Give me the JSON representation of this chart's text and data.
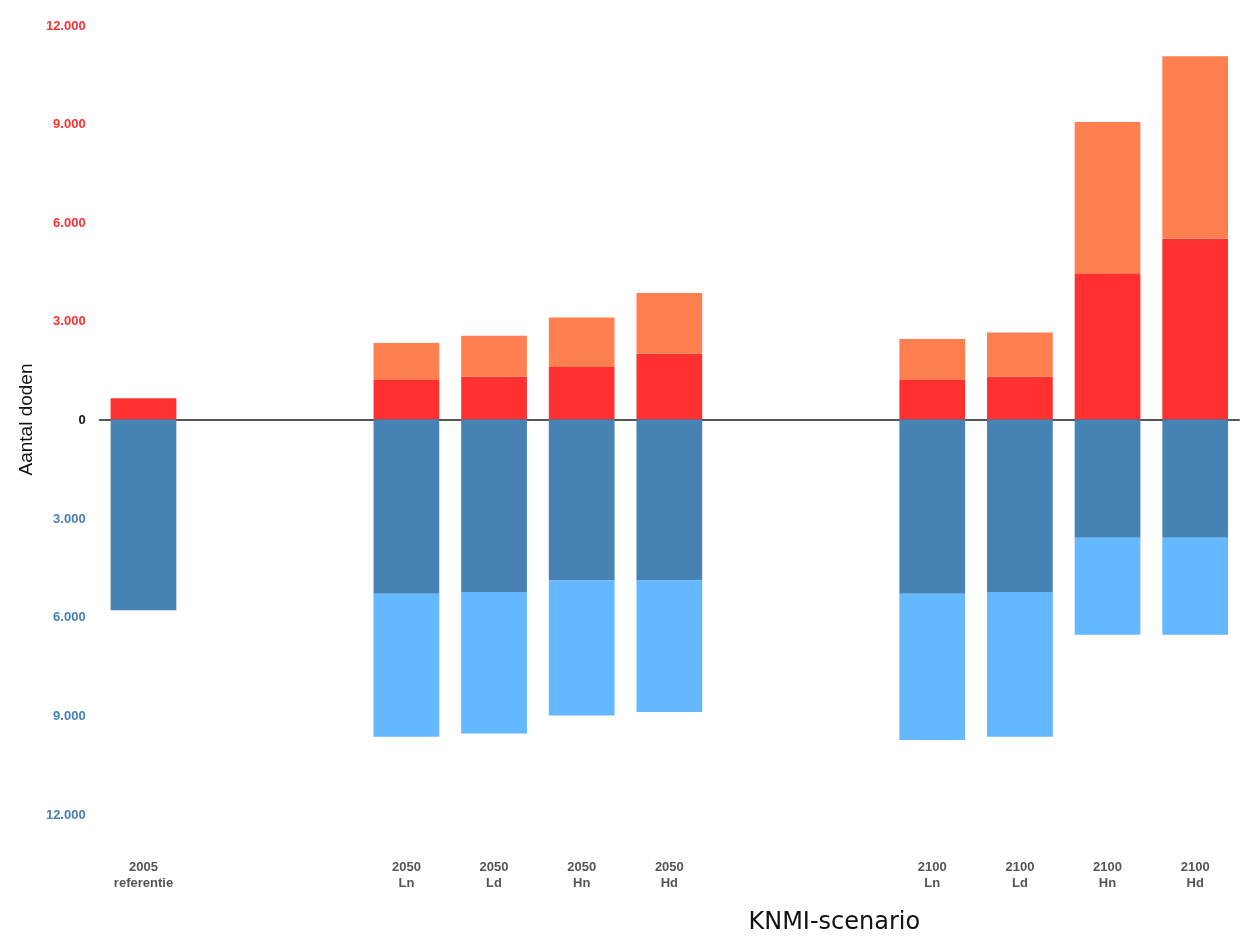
{
  "chart_data": {
    "type": "bar",
    "stacked": true,
    "xlabel": "KNMI-scenario",
    "ylabel": "Aantal doden",
    "categories": [
      "2005\nreferentie",
      null,
      null,
      "2050\nLn",
      "2050\nLd",
      "2050\nHn",
      "2050\nHd",
      null,
      null,
      "2100\nLn",
      "2100\nLd",
      "2100\nHn",
      "2100\nHd"
    ],
    "series": [
      {
        "color": "#ff3030",
        "values": [
          650,
          null,
          null,
          1200,
          1300,
          1600,
          2000,
          null,
          null,
          1200,
          1300,
          4450,
          5500
        ]
      },
      {
        "color": "#ff7f50",
        "values": [
          null,
          null,
          null,
          1130,
          1250,
          1500,
          1850,
          null,
          null,
          1250,
          1350,
          4600,
          5550
        ]
      },
      {
        "color": "#4682b4",
        "values": [
          -5800,
          null,
          null,
          -5300,
          -5250,
          -4900,
          -4900,
          null,
          null,
          -5300,
          -5250,
          -3600,
          -3600
        ]
      },
      {
        "color": "#63b8ff",
        "values": [
          null,
          null,
          null,
          -4350,
          -4300,
          -4100,
          -4000,
          null,
          null,
          -4450,
          -4400,
          -2950,
          -2950
        ]
      }
    ],
    "ylim": [
      -12000,
      12000
    ],
    "yticks": [
      {
        "value": -12000,
        "label": "12.000"
      },
      {
        "value": -9000,
        "label": "9.000"
      },
      {
        "value": -6000,
        "label": "6.000"
      },
      {
        "value": -3000,
        "label": "3.000"
      },
      {
        "value": 0,
        "label": "0"
      },
      {
        "value": 3000,
        "label": "3.000"
      },
      {
        "value": 6000,
        "label": "6.000"
      },
      {
        "value": 9000,
        "label": "9.000"
      },
      {
        "value": 12000,
        "label": "12.000"
      }
    ],
    "tick_labels": true
  }
}
